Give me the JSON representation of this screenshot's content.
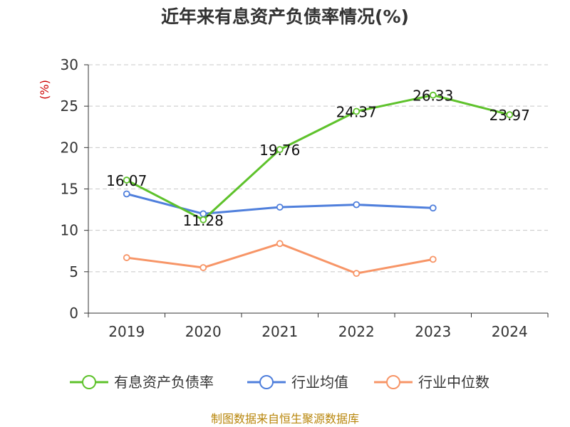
{
  "title": "近年来有息资产负债率情况(%)",
  "source": "制图数据来自恒生聚源数据库",
  "chart_data": {
    "type": "line",
    "title": "近年来有息资产负债率情况(%)",
    "ylabel": "(%)",
    "xlabel": "",
    "categories": [
      "2019",
      "2020",
      "2021",
      "2022",
      "2023",
      "2024"
    ],
    "ylim": [
      0,
      30
    ],
    "yticks": [
      0,
      5,
      10,
      15,
      20,
      25,
      30
    ],
    "grid": true,
    "legend_position": "bottom",
    "series": [
      {
        "name": "有息资产负债率",
        "color": "#5ec22b",
        "values": [
          16.07,
          11.28,
          19.76,
          24.37,
          26.33,
          23.97
        ],
        "labels": [
          "16.07",
          "11.28",
          "19.76",
          "24.37",
          "26.33",
          "23.97"
        ]
      },
      {
        "name": "行业均值",
        "color": "#4f7fdc",
        "values": [
          14.4,
          12.0,
          12.8,
          13.1,
          12.7,
          null
        ]
      },
      {
        "name": "行业中位数",
        "color": "#f79567",
        "values": [
          6.7,
          5.5,
          8.4,
          4.8,
          6.5,
          null
        ]
      }
    ]
  }
}
